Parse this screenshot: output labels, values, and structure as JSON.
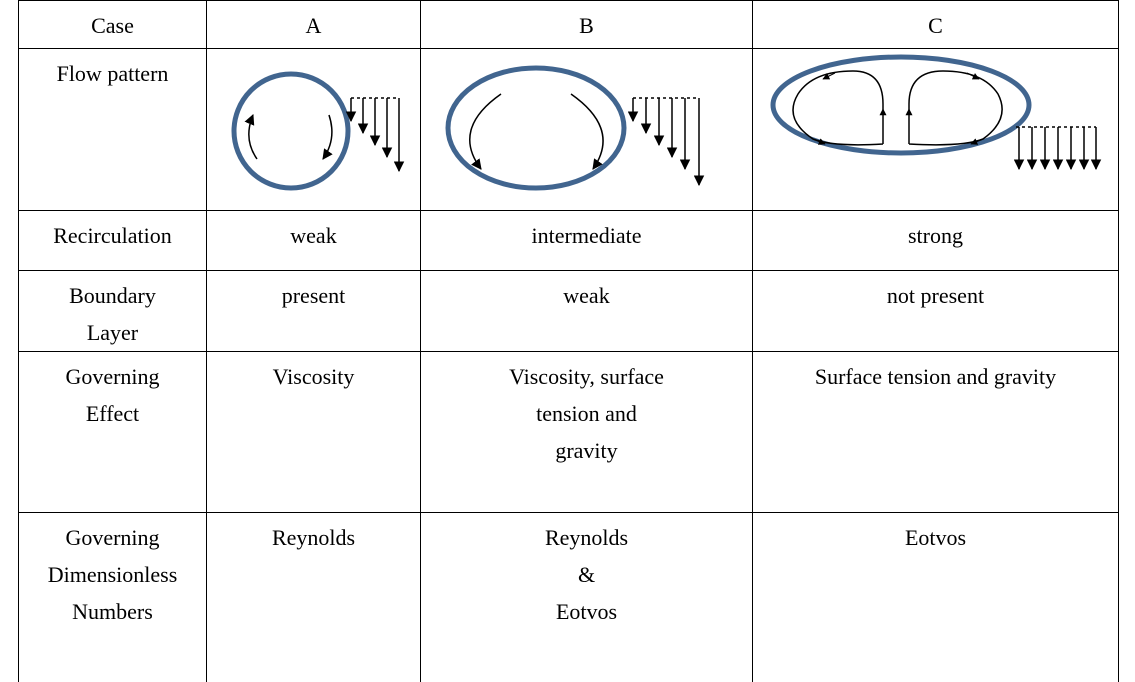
{
  "table": {
    "header": [
      "Case",
      "A",
      "B",
      "C"
    ],
    "rows": [
      {
        "label": [
          "Flow pattern"
        ]
      },
      {
        "label": [
          "Recirculation"
        ],
        "cells": [
          [
            "weak"
          ],
          [
            "intermediate"
          ],
          [
            "strong"
          ]
        ]
      },
      {
        "label": [
          "Boundary",
          "Layer"
        ],
        "cells": [
          [
            "present"
          ],
          [
            "weak"
          ],
          [
            "not present"
          ]
        ]
      },
      {
        "label": [
          "Governing",
          "Effect"
        ],
        "cells": [
          [
            "Viscosity"
          ],
          [
            "Viscosity, surface",
            "tension and",
            "gravity"
          ],
          [
            "Surface tension and gravity"
          ]
        ]
      },
      {
        "label": [
          "Governing",
          "Dimensionless",
          "Numbers"
        ],
        "cells": [
          [
            "Reynolds"
          ],
          [
            "Reynolds",
            "&",
            "Eotvos"
          ],
          [
            "Eotvos"
          ]
        ]
      }
    ]
  }
}
